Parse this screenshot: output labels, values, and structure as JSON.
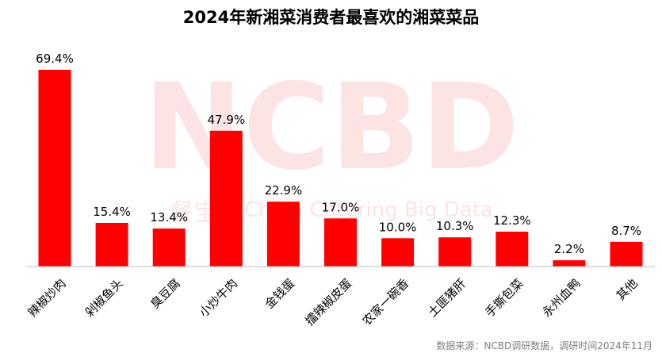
{
  "title": "2024年新湘菜消费者最喜欢的湘菜菜品",
  "source": "数据来源：NCBD调研数据，调研时间2024年11月",
  "watermark": {
    "brand": "NCBD",
    "cn_text": "餐宝典",
    "en_text": "China Catering Big Data"
  },
  "colors": {
    "bar": "#ff0000",
    "axis": "#bfbfbf",
    "watermark": "#fde4e4"
  },
  "chart_data": {
    "type": "bar",
    "title": "2024年新湘菜消费者最喜欢的湘菜菜品",
    "xlabel": "",
    "ylabel": "",
    "ylim": [
      0,
      75
    ],
    "grid": false,
    "categories": [
      "辣椒炒肉",
      "剁椒鱼头",
      "臭豆腐",
      "小炒牛肉",
      "金钱蛋",
      "擂辣椒皮蛋",
      "农家一碗香",
      "土匪猪肝",
      "手撕包菜",
      "永州血鸭",
      "其他"
    ],
    "values": [
      69.4,
      15.4,
      13.4,
      47.9,
      22.9,
      17.0,
      10.0,
      10.3,
      12.3,
      2.2,
      8.7
    ],
    "labels": [
      "69.4%",
      "15.4%",
      "13.4%",
      "47.9%",
      "22.9%",
      "17.0%",
      "10.0%",
      "10.3%",
      "12.3%",
      "2.2%",
      "8.7%"
    ],
    "unit": "%"
  }
}
